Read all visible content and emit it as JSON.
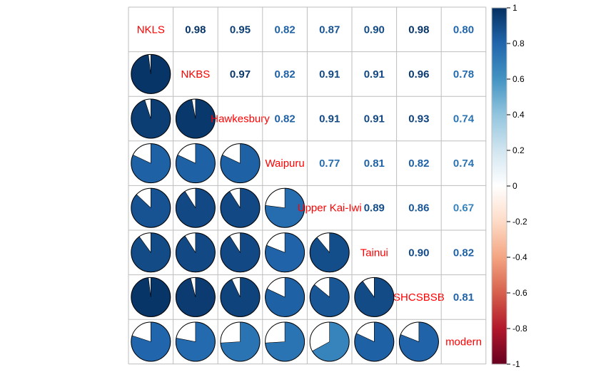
{
  "chart_data": {
    "type": "heatmap",
    "title": "",
    "variables": [
      "NKLS",
      "NKBS",
      "Hawkesbury",
      "Waipuru",
      "Upper Kai-Iwi",
      "Tainui",
      "SHCSBSB",
      "modern"
    ],
    "matrix": [
      [
        1.0,
        0.98,
        0.95,
        0.82,
        0.87,
        0.9,
        0.98,
        0.8
      ],
      [
        0.98,
        1.0,
        0.97,
        0.82,
        0.91,
        0.91,
        0.96,
        0.78
      ],
      [
        0.95,
        0.97,
        1.0,
        0.82,
        0.91,
        0.91,
        0.93,
        0.74
      ],
      [
        0.82,
        0.82,
        0.82,
        1.0,
        0.77,
        0.81,
        0.82,
        0.74
      ],
      [
        0.87,
        0.91,
        0.91,
        0.77,
        1.0,
        0.89,
        0.86,
        0.67
      ],
      [
        0.9,
        0.91,
        0.91,
        0.81,
        0.89,
        1.0,
        0.9,
        0.82
      ],
      [
        0.98,
        0.96,
        0.93,
        0.82,
        0.86,
        0.9,
        1.0,
        0.81
      ],
      [
        0.8,
        0.78,
        0.74,
        0.74,
        0.67,
        0.82,
        0.81,
        1.0
      ]
    ],
    "value_labels": [
      [
        "",
        "0.98",
        "0.95",
        "0.82",
        "0.87",
        "0.90",
        "0.98",
        "0.80"
      ],
      [
        "",
        "",
        "0.97",
        "0.82",
        "0.91",
        "0.91",
        "0.96",
        "0.78"
      ],
      [
        "",
        "",
        "",
        "0.82",
        "0.91",
        "0.91",
        "0.93",
        "0.74"
      ],
      [
        "",
        "",
        "",
        "",
        "0.77",
        "0.81",
        "0.82",
        "0.74"
      ],
      [
        "",
        "",
        "",
        "",
        "",
        "0.89",
        "0.86",
        "0.67"
      ],
      [
        "",
        "",
        "",
        "",
        "",
        "",
        "0.90",
        "0.82"
      ],
      [
        "",
        "",
        "",
        "",
        "",
        "",
        "",
        "0.81"
      ],
      [
        "",
        "",
        "",
        "",
        "",
        "",
        "",
        ""
      ]
    ],
    "lower": "pie",
    "upper": "number",
    "diagonal": "variable-name",
    "colorbar": {
      "range": [
        -1,
        1
      ],
      "ticks": [
        "1",
        "0.8",
        "0.6",
        "0.4",
        "0.2",
        "0",
        "-0.2",
        "-0.4",
        "-0.6",
        "-0.8",
        "-1"
      ],
      "stops": [
        "#67001F",
        "#B2182B",
        "#D6604D",
        "#F4A582",
        "#FDDBC7",
        "#FFFFFF",
        "#D1E5F0",
        "#92C5DE",
        "#4393C3",
        "#2166AC",
        "#053061"
      ]
    },
    "label_color": "#FF0000",
    "grid_color": "#BEBEBE"
  }
}
